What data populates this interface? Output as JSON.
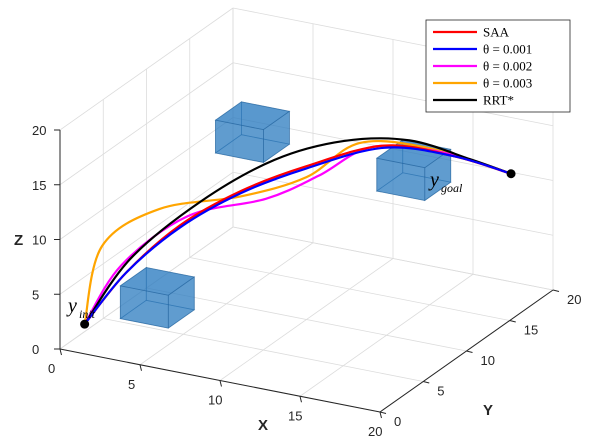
{
  "chart_data": {
    "type": "line3d",
    "xlabel": "X",
    "ylabel": "Y",
    "zlabel": "Z",
    "xlim": [
      0,
      20
    ],
    "ylim": [
      0,
      20
    ],
    "zlim": [
      0,
      20
    ],
    "xticks": [
      0,
      5,
      10,
      15,
      20
    ],
    "yticks": [
      0,
      5,
      10,
      15,
      20
    ],
    "zticks": [
      0,
      5,
      10,
      15,
      20
    ],
    "grid": true,
    "legend_position": "top-right",
    "colors": {
      "SAA": "#ff0000",
      "theta1": "#0000ff",
      "theta2": "#ff00ff",
      "theta3": "#ffa500",
      "RRT": "#000000",
      "obstacle": "#2b7bc0"
    },
    "annotations": {
      "start": {
        "main": "y",
        "sub": "init"
      },
      "goal": {
        "main": "y",
        "sub": "goal"
      }
    },
    "points": {
      "start": [
        1,
        1,
        2
      ],
      "goal": [
        19,
        17,
        12
      ]
    },
    "obstacles": [
      {
        "name": "obstacle-low",
        "center": [
          5,
          2,
          5
        ],
        "size": 3
      },
      {
        "name": "obstacle-mid",
        "center": [
          5,
          13,
          14
        ],
        "size": 3
      },
      {
        "name": "obstacle-high",
        "center": [
          14,
          15,
          12
        ],
        "size": 3
      }
    ],
    "series": [
      {
        "name": "SAA",
        "key": "SAA",
        "points": [
          [
            1,
            1,
            2
          ],
          [
            2.5,
            3,
            6
          ],
          [
            4.5,
            5.5,
            9.5
          ],
          [
            7,
            8,
            12
          ],
          [
            10,
            10,
            14
          ],
          [
            13.5,
            12.5,
            15.5
          ],
          [
            16.5,
            15,
            14
          ],
          [
            19,
            17,
            12
          ]
        ]
      },
      {
        "name": "θ = 0.001",
        "key": "theta1",
        "points": [
          [
            1,
            1,
            2
          ],
          [
            2.5,
            3,
            6
          ],
          [
            4.5,
            5.5,
            9.3
          ],
          [
            7,
            8,
            11.8
          ],
          [
            10,
            10,
            13.8
          ],
          [
            13.5,
            12.5,
            15.3
          ],
          [
            16.5,
            15,
            14
          ],
          [
            19,
            17,
            12
          ]
        ]
      },
      {
        "name": "θ = 0.002",
        "key": "theta2",
        "points": [
          [
            1,
            1,
            2
          ],
          [
            2.5,
            2.5,
            7
          ],
          [
            5,
            5.5,
            10.5
          ],
          [
            8,
            9,
            11
          ],
          [
            10.5,
            10.5,
            13
          ],
          [
            13,
            12,
            15.5
          ],
          [
            16,
            14.5,
            14.5
          ],
          [
            19,
            17,
            12
          ]
        ]
      },
      {
        "name": "θ = 0.003",
        "key": "theta3",
        "points": [
          [
            1,
            1,
            2
          ],
          [
            1,
            3,
            8
          ],
          [
            3.5,
            5,
            11
          ],
          [
            7,
            8,
            11.5
          ],
          [
            10,
            10,
            13
          ],
          [
            12.5,
            11.5,
            16
          ],
          [
            15.5,
            14,
            15
          ],
          [
            19,
            17,
            12
          ]
        ]
      },
      {
        "name": "RRT*",
        "key": "RRT",
        "points": [
          [
            1,
            1,
            2
          ],
          [
            2.5,
            3.5,
            7
          ],
          [
            5,
            7,
            11
          ],
          [
            8,
            10,
            14
          ],
          [
            11,
            12.5,
            15.2
          ],
          [
            14,
            14.5,
            15
          ],
          [
            17,
            16,
            13.3
          ],
          [
            19,
            17,
            12
          ]
        ]
      }
    ]
  }
}
